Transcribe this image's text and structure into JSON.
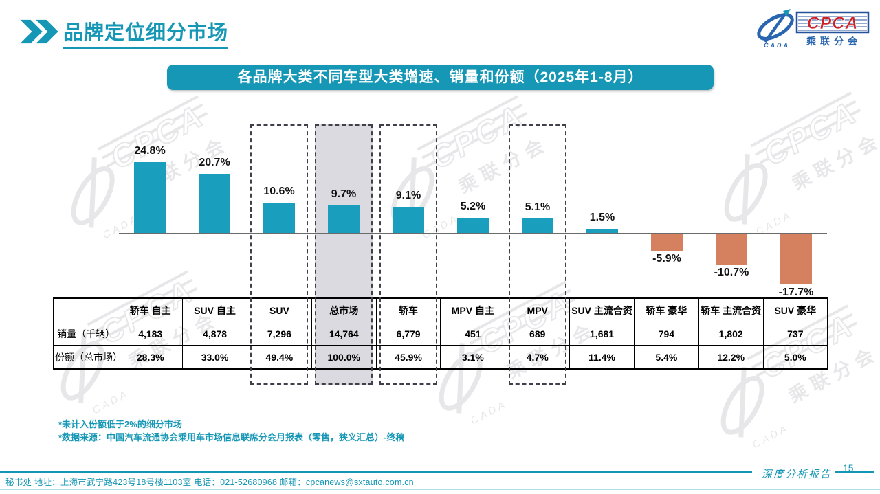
{
  "page": {
    "title": "品牌定位细分市场",
    "page_number": "15",
    "report_label": "深度分析报告",
    "footer_contact": "秘书处  地址：上海市武宁路423号18号楼1103室 电话：021-52680968  邮箱：cpcanews@sxtauto.com.cn"
  },
  "logo": {
    "cpca": "CPCA",
    "cada": "CADA",
    "subtitle": "乘联分会"
  },
  "banner": {
    "text": "各品牌大类不同车型大类增速、销量和份额（2025年1-8月）"
  },
  "footnotes": [
    "*未计入份额低于2%的细分市场",
    "*数据来源：中国汽车流通协会乘用车市场信息联席分会月报表（零售，狭义汇总）-终稿"
  ],
  "chart_data": {
    "type": "bar",
    "title": "各品牌大类不同车型大类增速、销量和份额（2025年1-8月）",
    "categories": [
      "轿车 自主",
      "SUV 自主",
      "SUV",
      "总市场",
      "轿车",
      "MPV 自主",
      "MPV",
      "SUV 主流合资",
      "轿车 豪华",
      "轿车 主流合资",
      "SUV 豪华"
    ],
    "growth_pct": [
      24.8,
      20.7,
      10.6,
      9.7,
      9.1,
      5.2,
      5.1,
      1.5,
      -5.9,
      -10.7,
      -17.7
    ],
    "sales_thousand": [
      "4,183",
      "4,878",
      "7,296",
      "14,764",
      "6,779",
      "451",
      "689",
      "1,681",
      "794",
      "1,802",
      "737"
    ],
    "share_pct": [
      "28.3%",
      "33.0%",
      "49.4%",
      "100.0%",
      "45.9%",
      "3.1%",
      "4.7%",
      "11.4%",
      "5.4%",
      "12.2%",
      "5.0%"
    ],
    "row_labels": [
      "销量（千辆）",
      "份额（总市场）"
    ],
    "highlight_dashed": [
      "SUV",
      "总市场",
      "轿车",
      "MPV"
    ],
    "highlight_filled": "总市场",
    "positive_color": "#199EBD",
    "negative_color": "#D5805F",
    "ylim": [
      -20,
      28
    ],
    "grid": false,
    "legend": false
  }
}
